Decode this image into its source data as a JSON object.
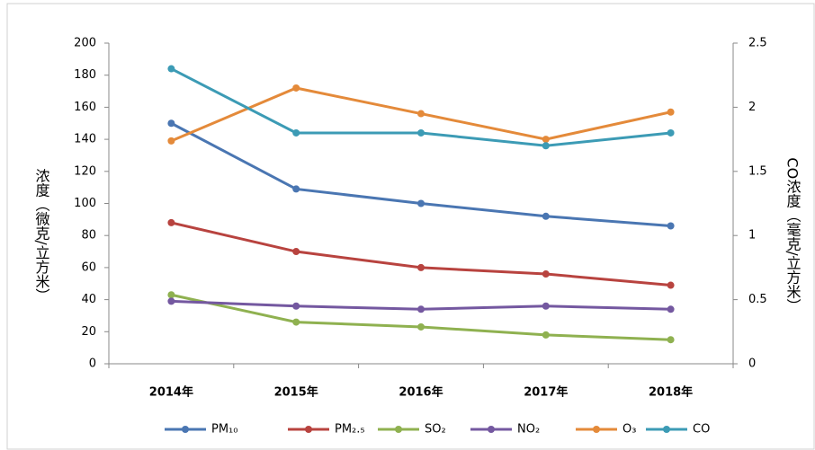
{
  "chart_data": {
    "type": "line",
    "categories": [
      "2014年",
      "2015年",
      "2016年",
      "2017年",
      "2018年"
    ],
    "y_label": "浓度（微克/立方米）",
    "y2_label": "CO浓度（毫克/立方米）",
    "ylim": [
      0,
      200
    ],
    "yticks": [
      0,
      20,
      40,
      60,
      80,
      100,
      120,
      140,
      160,
      180,
      200
    ],
    "y2lim": [
      0,
      2.5
    ],
    "y2ticks": [
      0,
      0.5,
      1,
      1.5,
      2,
      2.5
    ],
    "legend": "bottom",
    "series": [
      {
        "name": "PM₁₀",
        "color": "#4a76b2",
        "values": [
          150,
          109,
          100,
          92,
          86
        ]
      },
      {
        "name": "PM₂.₅",
        "color": "#b8433f",
        "values": [
          88,
          70,
          60,
          56,
          49
        ]
      },
      {
        "name": "SO₂",
        "color": "#8fb150",
        "values": [
          43,
          26,
          23,
          18,
          15
        ]
      },
      {
        "name": "NO₂",
        "color": "#7458a0",
        "values": [
          39,
          36,
          34,
          36,
          34
        ]
      },
      {
        "name": "O₃",
        "color": "#e48a3a",
        "values": [
          139,
          172,
          156,
          140,
          157
        ]
      },
      {
        "name": "CO",
        "color": "#3c9bb5",
        "values": [
          2.3,
          1.8,
          1.8,
          1.7,
          1.8
        ],
        "axis": "y2"
      }
    ]
  }
}
